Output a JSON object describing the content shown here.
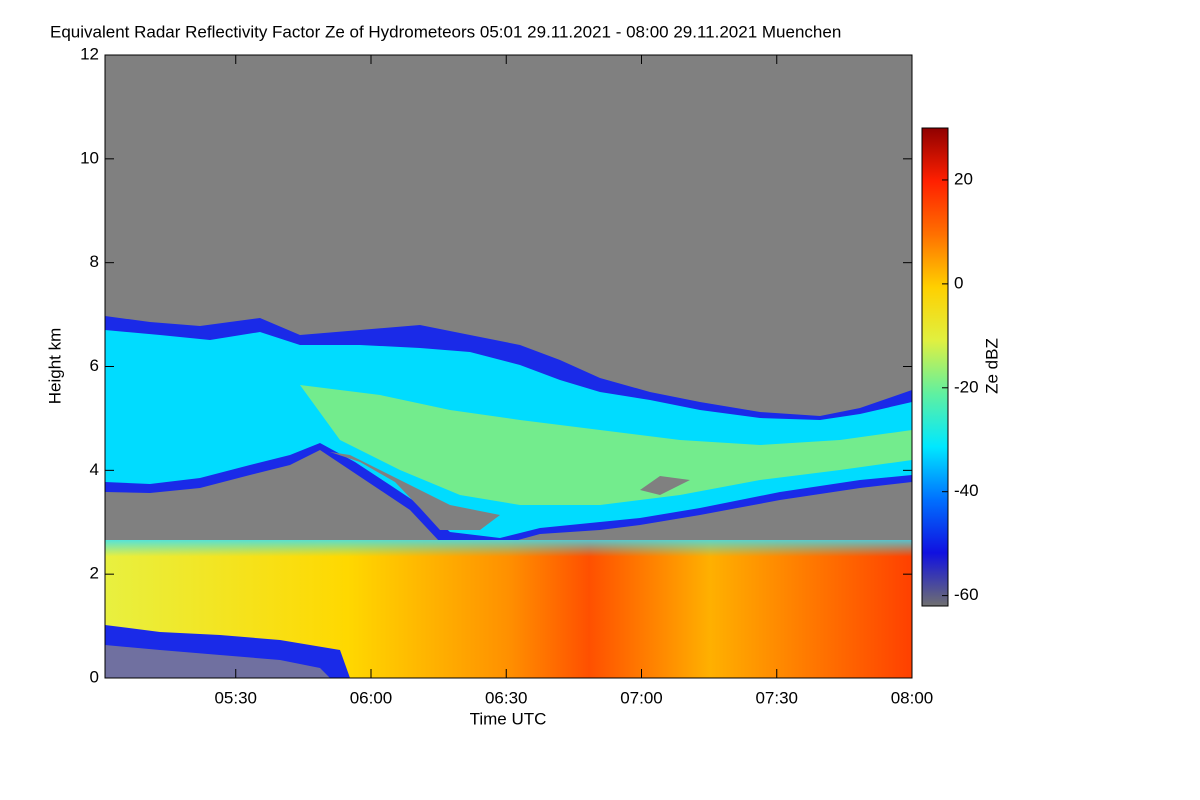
{
  "chart_data": {
    "type": "heatmap",
    "title": "Equivalent Radar Reflectivity Factor Ze of Hydrometeors   05:01 29.11.2021 - 08:00 29.11.2021 Muenchen",
    "x_label": "Time UTC",
    "y_label": "Height km",
    "xlim": [
      "05:01",
      "08:00"
    ],
    "xticks": [
      "05:30",
      "06:00",
      "06:30",
      "07:00",
      "07:30",
      "08:00"
    ],
    "ylim": [
      0,
      12
    ],
    "yticks": [
      0,
      2,
      4,
      6,
      8,
      10,
      12
    ],
    "colorbar_label": "Ze dBZ",
    "clim": [
      -62,
      30
    ],
    "cticks": [
      -60,
      -40,
      -20,
      0,
      20
    ],
    "colormap": [
      "#707070",
      "#1010e0",
      "#0070ff",
      "#00e8ff",
      "#60f0a0",
      "#e0f040",
      "#ffd000",
      "#ff7000",
      "#ff2000",
      "#900000"
    ],
    "background": "#808080"
  }
}
